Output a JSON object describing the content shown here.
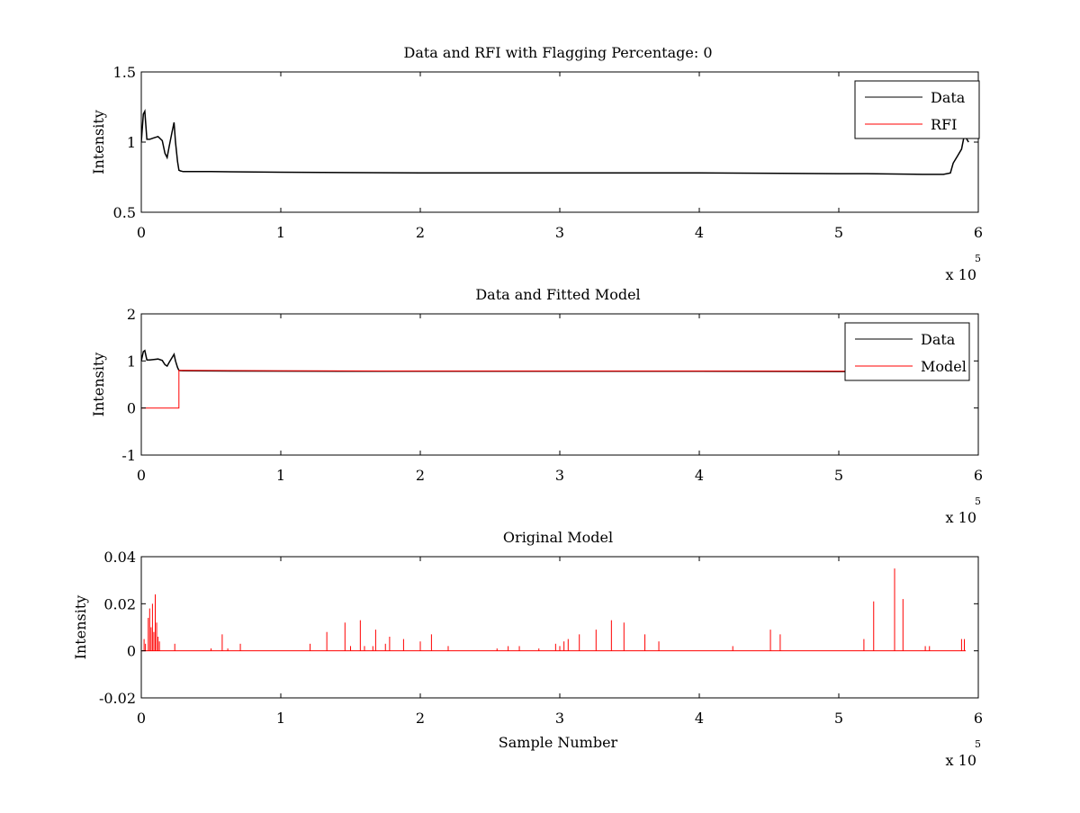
{
  "figure": {
    "background": "#ffffff",
    "colors": {
      "data": "#000000",
      "rfi": "#ff0000",
      "axes": "#000000"
    }
  },
  "chart_data": [
    {
      "type": "line",
      "title": "Data and RFI with Flagging Percentage: 0",
      "xlabel": "",
      "ylabel": "Intensity",
      "xlim": [
        0,
        600000
      ],
      "ylim": [
        0.5,
        1.5
      ],
      "xticks": [
        0,
        1,
        2,
        3,
        4,
        5,
        6
      ],
      "yticks": [
        0.5,
        1,
        1.5
      ],
      "x_exponent_label": "x 10",
      "x_exponent_power": "5",
      "legend": {
        "position": "top-right",
        "entries": [
          "Data",
          "RFI"
        ]
      },
      "series": [
        {
          "name": "Data",
          "color": "#000000",
          "x": [
            0,
            1500,
            2500,
            4000,
            6000,
            9000,
            12000,
            15000,
            17000,
            18500,
            20000,
            22000,
            23500,
            24500,
            26000,
            27000,
            28000,
            30000,
            50000,
            100000,
            200000,
            300000,
            400000,
            500000,
            520000,
            560000,
            575000,
            580000,
            582000,
            585000,
            588000,
            590000,
            593000
          ],
          "values": [
            1.0,
            1.2,
            1.22,
            1.02,
            1.02,
            1.03,
            1.04,
            1.01,
            0.92,
            0.89,
            0.97,
            1.07,
            1.14,
            1.0,
            0.86,
            0.8,
            0.795,
            0.79,
            0.79,
            0.785,
            0.78,
            0.78,
            0.78,
            0.775,
            0.775,
            0.77,
            0.77,
            0.78,
            0.85,
            0.9,
            0.95,
            1.05,
            1.0
          ]
        },
        {
          "name": "RFI",
          "color": "#ff0000",
          "x": [],
          "values": []
        }
      ]
    },
    {
      "type": "line",
      "title": "Data and Fitted Model",
      "xlabel": "",
      "ylabel": "Intensity",
      "xlim": [
        0,
        600000
      ],
      "ylim": [
        -1,
        2
      ],
      "xticks": [
        0,
        1,
        2,
        3,
        4,
        5,
        6
      ],
      "yticks": [
        -1,
        0,
        1,
        2
      ],
      "x_exponent_label": "x 10",
      "x_exponent_power": "5",
      "legend": {
        "position": "top-right",
        "entries": [
          "Data",
          "Model"
        ]
      },
      "series": [
        {
          "name": "Data",
          "color": "#000000",
          "x": [
            0,
            1500,
            2500,
            4000,
            6000,
            9000,
            12000,
            15000,
            17000,
            18500,
            20000,
            22000,
            23500,
            24500,
            26000,
            27000,
            28000,
            30000,
            100000,
            200000,
            300000,
            400000,
            500000,
            520000
          ],
          "values": [
            1.0,
            1.2,
            1.22,
            1.02,
            1.02,
            1.03,
            1.04,
            1.01,
            0.92,
            0.89,
            0.97,
            1.07,
            1.14,
            1.0,
            0.86,
            0.8,
            0.795,
            0.79,
            0.785,
            0.78,
            0.78,
            0.78,
            0.775,
            0.775
          ]
        },
        {
          "name": "Model",
          "color": "#ff0000",
          "x": [
            0,
            27000,
            27000,
            100000,
            200000,
            300000,
            400000,
            500000,
            520000
          ],
          "values": [
            0.0,
            0.0,
            0.8,
            0.79,
            0.785,
            0.785,
            0.785,
            0.78,
            0.78
          ]
        }
      ]
    },
    {
      "type": "line",
      "title": "Original Model",
      "xlabel": "Sample Number",
      "ylabel": "Intensity",
      "xlim": [
        0,
        600000
      ],
      "ylim": [
        -0.02,
        0.04
      ],
      "xticks": [
        0,
        1,
        2,
        3,
        4,
        5,
        6
      ],
      "yticks": [
        -0.02,
        0,
        0.02,
        0.04
      ],
      "x_exponent_label": "x 10",
      "x_exponent_power": "5",
      "legend": null,
      "series": [
        {
          "name": "",
          "color": "#ff0000",
          "spikes_x": [
            2000,
            3000,
            5000,
            6000,
            7000,
            8000,
            9000,
            10000,
            11000,
            12000,
            13000,
            24000,
            50000,
            58000,
            62000,
            71000,
            121000,
            133000,
            146000,
            150000,
            157000,
            160000,
            166000,
            168000,
            175000,
            178000,
            188000,
            200000,
            208000,
            220000,
            255000,
            263000,
            271000,
            285000,
            297000,
            300000,
            303000,
            306000,
            314000,
            326000,
            337000,
            346000,
            361000,
            371000,
            424000,
            451000,
            458000,
            518000,
            525000,
            540000,
            546000,
            562000,
            565000,
            588000,
            590000
          ],
          "spikes_y": [
            0.005,
            0.003,
            0.014,
            0.018,
            0.01,
            0.02,
            0.008,
            0.024,
            0.012,
            0.006,
            0.004,
            0.003,
            0.001,
            0.007,
            0.001,
            0.003,
            0.003,
            0.008,
            0.012,
            0.002,
            0.013,
            0.002,
            0.002,
            0.009,
            0.003,
            0.006,
            0.005,
            0.004,
            0.007,
            0.002,
            0.001,
            0.002,
            0.002,
            0.001,
            0.003,
            0.002,
            0.004,
            0.005,
            0.007,
            0.009,
            0.013,
            0.012,
            0.007,
            0.004,
            0.002,
            0.009,
            0.007,
            0.005,
            0.021,
            0.035,
            0.022,
            0.002,
            0.002,
            0.005,
            0.005
          ]
        }
      ]
    }
  ]
}
